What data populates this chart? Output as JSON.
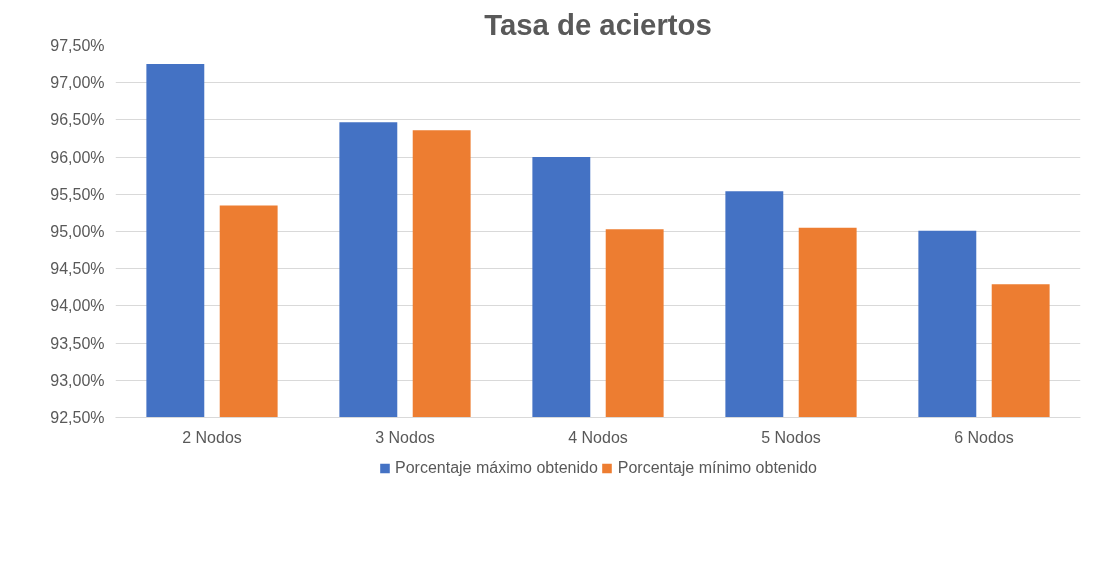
{
  "chart_data": {
    "type": "bar",
    "title": "Tasa de aciertos",
    "categories": [
      "2 Nodos",
      "3 Nodos",
      "4 Nodos",
      "5 Nodos",
      "6 Nodos"
    ],
    "series": [
      {
        "name": "Porcentaje máximo obtenido",
        "color": "#4472c4",
        "values": [
          97.25,
          96.47,
          96.0,
          95.54,
          95.01
        ]
      },
      {
        "name": "Porcentaje mínimo obtenido",
        "color": "#ed7d31",
        "values": [
          95.35,
          96.36,
          95.03,
          95.05,
          94.29
        ]
      }
    ],
    "ylim": [
      92.5,
      97.5
    ],
    "yticks": [
      {
        "value": 92.5,
        "label": "92,50%"
      },
      {
        "value": 93.0,
        "label": "93,00%"
      },
      {
        "value": 93.5,
        "label": "93,50%"
      },
      {
        "value": 94.0,
        "label": "94,00%"
      },
      {
        "value": 94.5,
        "label": "94,50%"
      },
      {
        "value": 95.0,
        "label": "95,00%"
      },
      {
        "value": 95.5,
        "label": "95,50%"
      },
      {
        "value": 96.0,
        "label": "96,00%"
      },
      {
        "value": 96.5,
        "label": "96,50%"
      },
      {
        "value": 97.0,
        "label": "97,00%"
      },
      {
        "value": 97.5,
        "label": "97,50%"
      }
    ],
    "grid": "y",
    "legend": "bottom"
  }
}
